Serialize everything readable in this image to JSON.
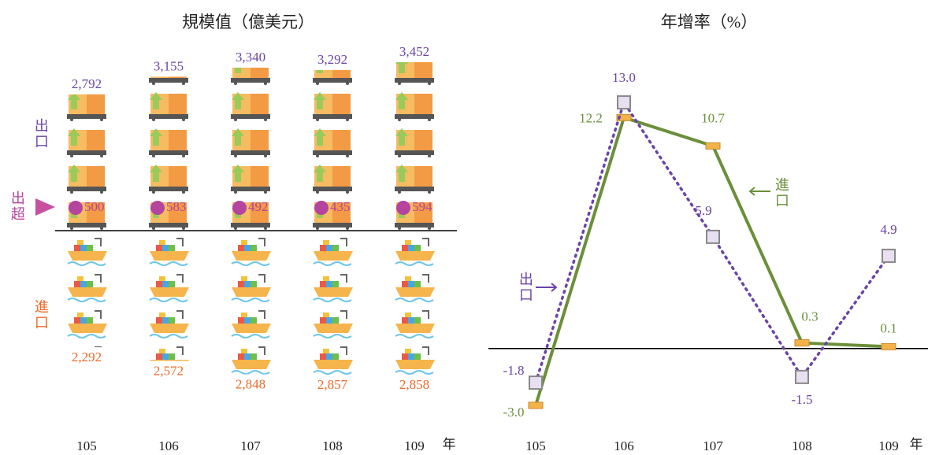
{
  "chart_data": [
    {
      "type": "pictogram",
      "title": "規模值（億美元）",
      "categories": [
        "105",
        "106",
        "107",
        "108",
        "109"
      ],
      "x_label": "年",
      "series": [
        {
          "name": "出口",
          "color": "#6a44a8",
          "values": [
            2792,
            3155,
            3340,
            3292,
            3452
          ],
          "value_labels": [
            "2,792",
            "3,155",
            "3,340",
            "3,292",
            "3,452"
          ]
        },
        {
          "name": "進口",
          "color": "#f0692a",
          "values": [
            2292,
            2572,
            2848,
            2857,
            2858
          ],
          "value_labels": [
            "2,292",
            "2,572",
            "2,848",
            "2,857",
            "2,858"
          ]
        },
        {
          "name": "出超",
          "color": "#b4449e",
          "values": [
            500,
            583,
            492,
            435,
            594
          ]
        }
      ]
    },
    {
      "type": "line",
      "title": "年增率（%）",
      "categories": [
        "105",
        "106",
        "107",
        "108",
        "109"
      ],
      "x_label": "年",
      "ylim": [
        -4,
        15
      ],
      "series": [
        {
          "name": "出口",
          "color": "#6a44a8",
          "values": [
            -1.8,
            13.0,
            5.9,
            -1.5,
            4.9
          ],
          "value_labels": [
            "-1.8",
            "13.0",
            "5.9",
            "-1.5",
            "4.9"
          ]
        },
        {
          "name": "進口",
          "color": "#6b8f3a",
          "values": [
            -3.0,
            12.2,
            10.7,
            0.3,
            0.1
          ],
          "value_labels": [
            "-3.0",
            "12.2",
            "10.7",
            "0.3",
            "0.1"
          ]
        }
      ]
    }
  ]
}
